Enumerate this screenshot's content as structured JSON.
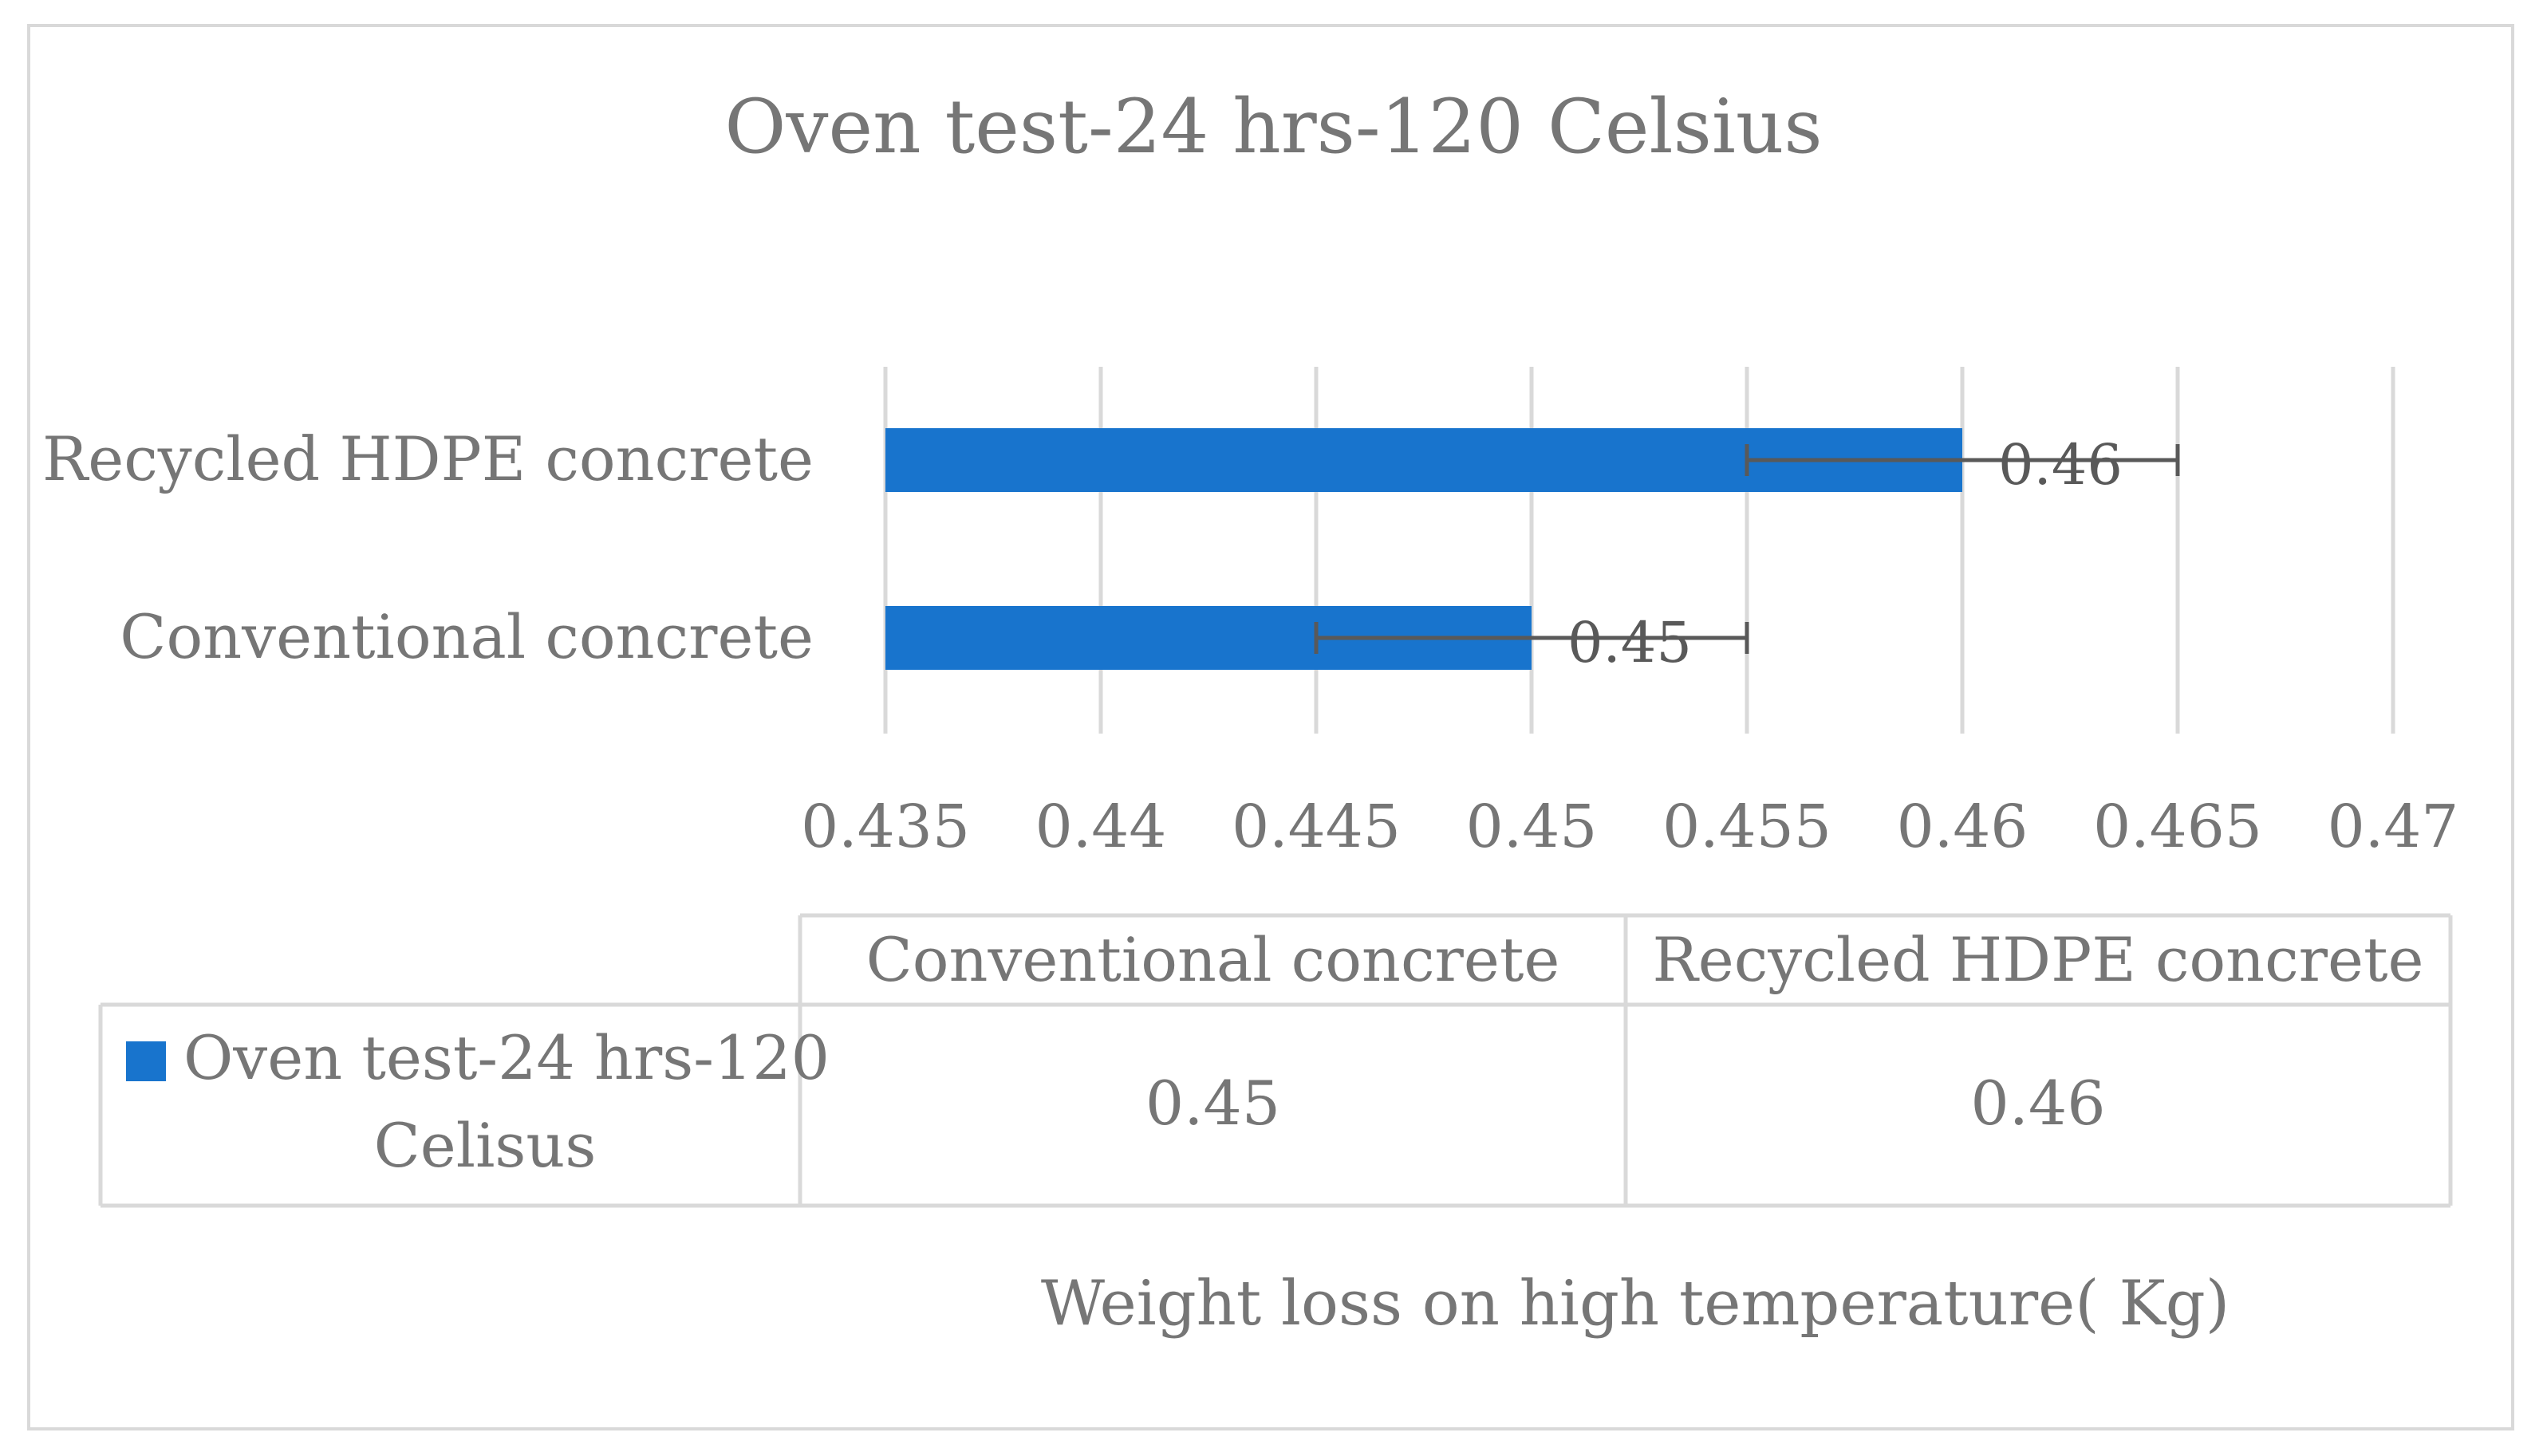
{
  "chart_data": {
    "type": "bar",
    "orientation": "horizontal",
    "title": "Oven test-24 hrs-120 Celsius",
    "xlabel": "Weight loss on high temperature( Kg)",
    "ylabel": "",
    "categories": [
      "Conventional concrete",
      "Recycled HDPE concrete"
    ],
    "series": [
      {
        "name": "Oven test-24 hrs-120 Celisus",
        "values": [
          0.45,
          0.46
        ],
        "error_minus": [
          0.005,
          0.005
        ],
        "error_plus": [
          0.005,
          0.005
        ],
        "data_labels": [
          "0.45",
          "0.46"
        ],
        "color": "#1874cd"
      }
    ],
    "xlim": [
      0.435,
      0.47
    ],
    "xticks": [
      0.435,
      0.44,
      0.445,
      0.45,
      0.455,
      0.46,
      0.465,
      0.47
    ],
    "xtick_labels": [
      "0.435",
      "0.44",
      "0.445",
      "0.45",
      "0.455",
      "0.46",
      "0.465",
      "0.47"
    ],
    "grid": "vertical",
    "legend": "in data table",
    "data_table": {
      "headers": [
        "Conventional concrete",
        "Recycled HDPE concrete"
      ],
      "row_label": "Oven test-24 hrs-120 Celisus",
      "values": [
        "0.45",
        "0.46"
      ]
    }
  }
}
